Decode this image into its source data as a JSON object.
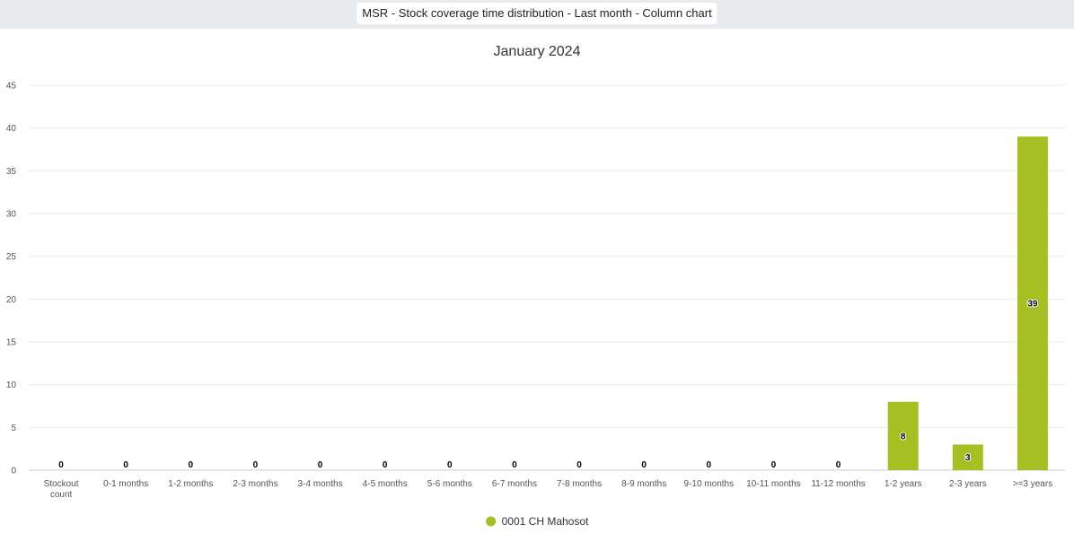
{
  "header": {
    "report_title": "MSR - Stock coverage time distribution - Last month - Column chart"
  },
  "colors": {
    "series": "#a6c023",
    "grid": "#ebebeb",
    "header_bg": "#e7ebef"
  },
  "chart_data": {
    "type": "bar",
    "title": "January 2024",
    "xlabel": "",
    "ylabel": "",
    "ylim": [
      0,
      45
    ],
    "yticks": [
      0,
      5,
      10,
      15,
      20,
      25,
      30,
      35,
      40,
      45
    ],
    "grid": true,
    "legend_position": "bottom-center",
    "categories": [
      "Stockout count",
      "0-1 months",
      "1-2 months",
      "2-3 months",
      "3-4 months",
      "4-5 months",
      "5-6 months",
      "6-7 months",
      "7-8 months",
      "8-9 months",
      "9-10 months",
      "10-11 months",
      "11-12 months",
      "1-2 years",
      "2-3 years",
      ">=3 years"
    ],
    "series": [
      {
        "name": "0001 CH Mahosot",
        "values": [
          0,
          0,
          0,
          0,
          0,
          0,
          0,
          0,
          0,
          0,
          0,
          0,
          0,
          8,
          3,
          39
        ]
      }
    ]
  }
}
